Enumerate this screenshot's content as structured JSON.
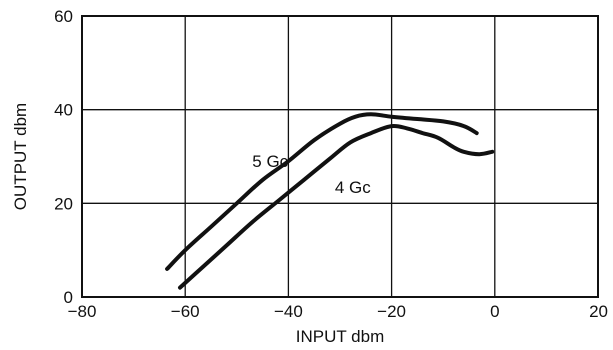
{
  "chart_data": {
    "type": "line",
    "title": "",
    "xlabel": "INPUT dbm",
    "ylabel": "OUTPUT dbm",
    "xlim": [
      -80,
      20
    ],
    "ylim": [
      0,
      60
    ],
    "xticks": [
      -80,
      -60,
      -40,
      -20,
      0,
      20
    ],
    "yticks": [
      0,
      20,
      40,
      60
    ],
    "x_tick_labels": [
      "−80",
      "−60",
      "−40",
      "−20",
      "0",
      "20"
    ],
    "y_tick_labels": [
      "0",
      "20",
      "40",
      "60"
    ],
    "grid": true,
    "series": [
      {
        "name": "5 Gc",
        "x": [
          -63.5,
          -60,
          -55,
          -50,
          -45,
          -40,
          -35,
          -30,
          -27,
          -24,
          -20,
          -15,
          -10,
          -6,
          -3.5
        ],
        "y": [
          6,
          10,
          15,
          20,
          25,
          29,
          33.5,
          37,
          38.5,
          39,
          38.5,
          38,
          37.5,
          36.5,
          35
        ]
      },
      {
        "name": "4 Gc",
        "x": [
          -61,
          -57,
          -52,
          -47,
          -42,
          -37,
          -32,
          -28,
          -24,
          -20,
          -17,
          -14,
          -11,
          -8,
          -6,
          -3,
          -0.5
        ],
        "y": [
          2,
          6,
          11,
          16,
          20.5,
          25,
          29.5,
          33,
          35,
          36.5,
          36,
          35,
          34,
          32,
          31,
          30.5,
          31
        ]
      }
    ]
  }
}
